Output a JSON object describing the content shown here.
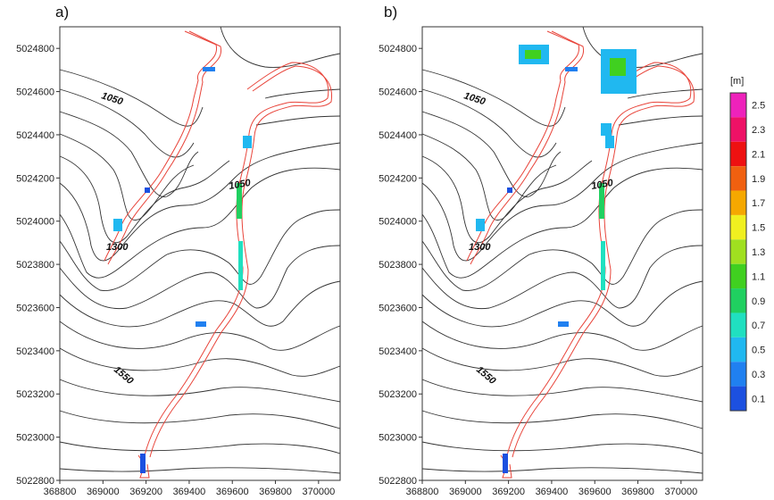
{
  "panels": [
    {
      "label": "a)"
    },
    {
      "label": "b)"
    }
  ],
  "axes": {
    "x_ticks": [
      "368800",
      "369000",
      "369200",
      "369400",
      "369600",
      "369800",
      "370000"
    ],
    "y_ticks": [
      "5024800",
      "5024600",
      "5024400",
      "5024200",
      "5024000",
      "5023800",
      "5023600",
      "5023400",
      "5023200",
      "5023000",
      "5022800"
    ]
  },
  "contour_labels": {
    "c1050a": "1050",
    "c1050b": "1050",
    "c1300": "1300",
    "c1550": "1550"
  },
  "legend": {
    "unit": "[m]",
    "levels": [
      "2.5",
      "2.3",
      "2.1",
      "1.9",
      "1.7",
      "1.5",
      "1.3",
      "1.1",
      "0.9",
      "0.7",
      "0.5",
      "0.3",
      "0.1"
    ],
    "colors": [
      "#ee22bb",
      "#ee1166",
      "#ee1111",
      "#f06010",
      "#f5a800",
      "#f0f020",
      "#a0e020",
      "#40d020",
      "#20d060",
      "#20e0c0",
      "#20b8f0",
      "#2080f0",
      "#1c50e0"
    ]
  },
  "chart_data": {
    "type": "map",
    "x_range": [
      368800,
      370100
    ],
    "y_range": [
      5022800,
      5024900
    ],
    "colorbar": {
      "label": "[m]",
      "min": 0.1,
      "max": 2.5
    }
  }
}
